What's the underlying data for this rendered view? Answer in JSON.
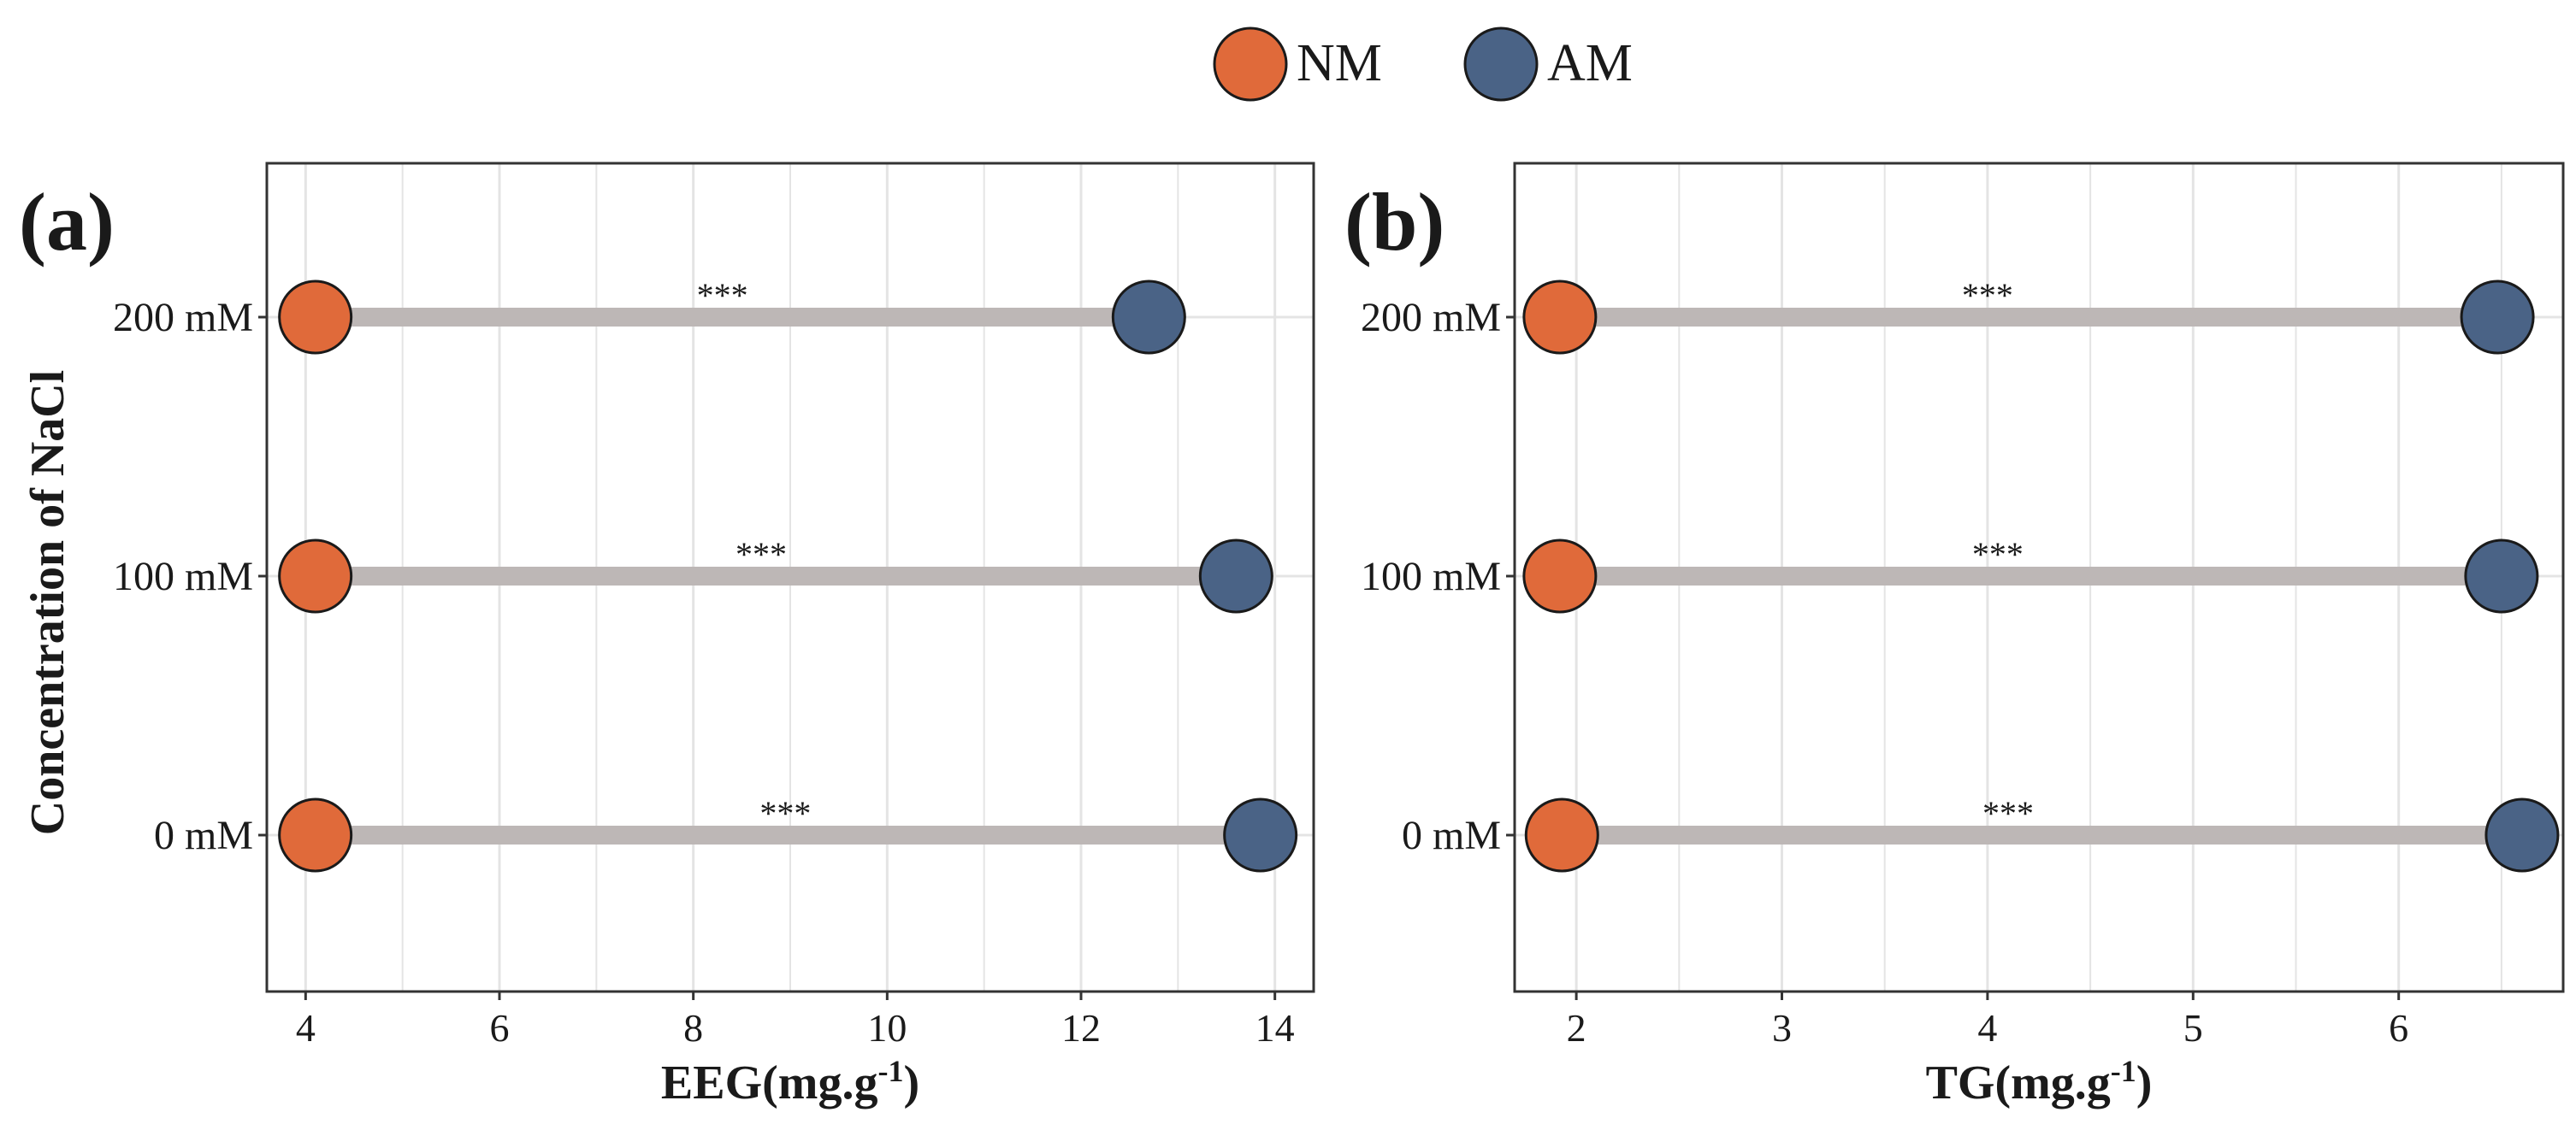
{
  "legend": {
    "items": [
      {
        "label": "NM",
        "color": "#E06A3A"
      },
      {
        "label": "AM",
        "color": "#4A6386"
      }
    ]
  },
  "y_axis_title": "Concentration of NaCl",
  "colors": {
    "segment": "#BDB7B6",
    "grid": "#E4E4E4",
    "axis": "#333333",
    "point_edge": "#1a1a1a"
  },
  "chart_data": [
    {
      "type": "dumbbell",
      "panel_label": "(a)",
      "xlabel": "EEG(mg.g",
      "xlabel_sup": "-1",
      "xlabel_close": ")",
      "xlim": [
        3.6,
        14.4
      ],
      "xticks": [
        4,
        6,
        8,
        10,
        12,
        14
      ],
      "x_tick_labels": [
        "4",
        "6",
        "8",
        "10",
        "12",
        "14"
      ],
      "minor_gridlines": [
        5,
        7,
        9,
        11,
        13
      ],
      "categories": [
        "200 mM",
        "100 mM",
        "0 mM"
      ],
      "series": [
        {
          "name": "NM",
          "values": [
            4.1,
            4.1,
            4.1
          ]
        },
        {
          "name": "AM",
          "values": [
            12.7,
            13.6,
            13.85
          ]
        }
      ],
      "annotations": [
        {
          "category": "200 mM",
          "text": "***",
          "x": 8.3
        },
        {
          "category": "100 mM",
          "text": "***",
          "x": 8.7
        },
        {
          "category": "0 mM",
          "text": "***",
          "x": 8.95
        }
      ]
    },
    {
      "type": "dumbbell",
      "panel_label": "(b)",
      "xlabel": "TG(mg.g",
      "xlabel_sup": "-1",
      "xlabel_close": ")",
      "xlim": [
        1.7,
        6.8
      ],
      "xticks": [
        2,
        3,
        4,
        5,
        6
      ],
      "x_tick_labels": [
        "2",
        "3",
        "4",
        "5",
        "6"
      ],
      "minor_gridlines": [
        2.5,
        3.5,
        4.5,
        5.5,
        6.5
      ],
      "categories": [
        "200 mM",
        "100 mM",
        "0 mM"
      ],
      "series": [
        {
          "name": "NM",
          "values": [
            1.92,
            1.92,
            1.93
          ]
        },
        {
          "name": "AM",
          "values": [
            6.48,
            6.5,
            6.6
          ]
        }
      ],
      "annotations": [
        {
          "category": "200 mM",
          "text": "***",
          "x": 4.0
        },
        {
          "category": "100 mM",
          "text": "***",
          "x": 4.05
        },
        {
          "category": "0 mM",
          "text": "***",
          "x": 4.1
        }
      ]
    }
  ]
}
